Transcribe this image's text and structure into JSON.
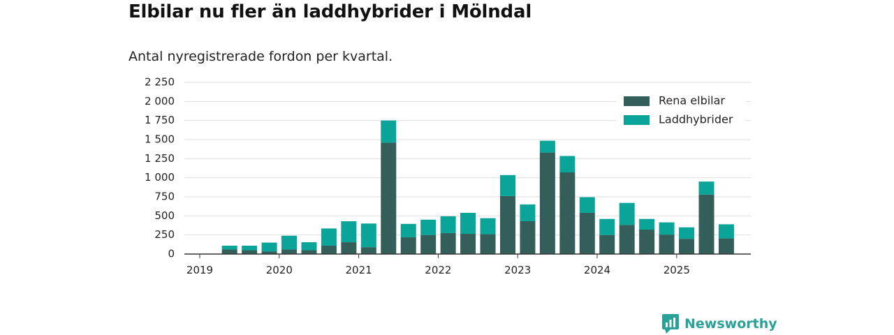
{
  "title": "Elbilar nu fler än laddhybrider i Mölndal",
  "subtitle": "Antal nyregistrerade fordon per kvartal.",
  "brand": "Newsworthy",
  "colors": {
    "ev": "#335e5a",
    "phev": "#0ba499",
    "grid": "#dddddd",
    "axis": "#333333",
    "brand": "#2aa198"
  },
  "chart_data": {
    "type": "bar",
    "stacked": true,
    "ylim": [
      0,
      2250
    ],
    "yticks": [
      0,
      250,
      500,
      750,
      1000,
      1250,
      1500,
      1750,
      2000,
      2250
    ],
    "ytick_labels": [
      "0",
      "250",
      "500",
      "750",
      "1 000",
      "1 250",
      "1 500",
      "1 750",
      "2 000",
      "2 250"
    ],
    "xtick_labels": [
      "2019",
      "2020",
      "2021",
      "2022",
      "2023",
      "2024",
      "2025"
    ],
    "legend_position": "top-right",
    "grid": true,
    "categories": [
      "2019 Q1",
      "2019 Q2",
      "2019 Q3",
      "2019 Q4",
      "2020 Q1",
      "2020 Q2",
      "2020 Q3",
      "2020 Q4",
      "2021 Q1",
      "2021 Q2",
      "2021 Q3",
      "2021 Q4",
      "2022 Q1",
      "2022 Q2",
      "2022 Q3",
      "2022 Q4",
      "2023 Q1",
      "2023 Q2",
      "2023 Q3",
      "2023 Q4",
      "2024 Q1",
      "2024 Q2",
      "2024 Q3",
      "2024 Q4",
      "2025 Q1",
      "2025 Q2",
      "2025 Q3"
    ],
    "series": [
      {
        "name": "Rena elbilar",
        "values": [
          0,
          60,
          50,
          35,
          60,
          50,
          110,
          155,
          90,
          1460,
          220,
          250,
          275,
          265,
          260,
          760,
          430,
          1330,
          1070,
          540,
          250,
          380,
          320,
          255,
          200,
          780,
          205
        ]
      },
      {
        "name": "Laddhybrider",
        "values": [
          0,
          50,
          60,
          115,
          180,
          105,
          225,
          275,
          310,
          290,
          175,
          200,
          220,
          275,
          210,
          275,
          220,
          155,
          215,
          205,
          210,
          290,
          140,
          160,
          150,
          170,
          185
        ]
      }
    ]
  }
}
